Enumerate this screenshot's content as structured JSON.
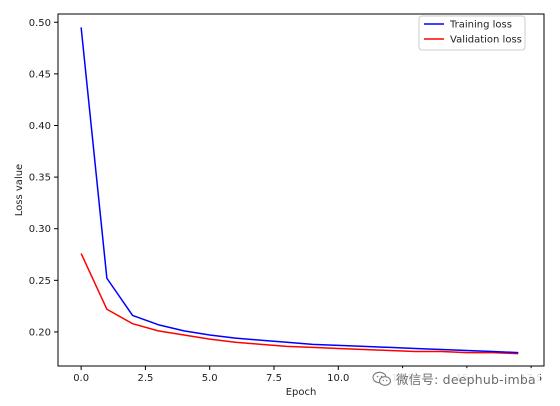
{
  "chart_data": {
    "type": "line",
    "xlabel": "Epoch",
    "ylabel": "Loss value",
    "xlim": [
      -0.9,
      18.0
    ],
    "ylim": [
      0.167,
      0.508
    ],
    "grid": false,
    "legend_position": "top-right",
    "x_ticks": [
      0.0,
      2.5,
      5.0,
      7.5,
      10.0,
      12.5,
      15.0,
      17.5
    ],
    "x_tick_labels": [
      "0.0",
      "2.5",
      "5.0",
      "7.5",
      "10.0",
      "12.5",
      "15.0",
      "17.5"
    ],
    "y_ticks": [
      0.2,
      0.25,
      0.3,
      0.35,
      0.4,
      0.45,
      0.5
    ],
    "y_tick_labels": [
      "0.20",
      "0.25",
      "0.30",
      "0.35",
      "0.40",
      "0.45",
      "0.50"
    ],
    "x": [
      0,
      1,
      2,
      3,
      4,
      5,
      6,
      7,
      8,
      9,
      10,
      11,
      12,
      13,
      14,
      15,
      16,
      17
    ],
    "series": [
      {
        "name": "Training loss",
        "color": "#0000ff",
        "values": [
          0.495,
          0.252,
          0.216,
          0.207,
          0.201,
          0.197,
          0.194,
          0.192,
          0.19,
          0.188,
          0.187,
          0.186,
          0.185,
          0.184,
          0.183,
          0.182,
          0.181,
          0.18
        ]
      },
      {
        "name": "Validation loss",
        "color": "#ff0000",
        "values": [
          0.276,
          0.222,
          0.208,
          0.201,
          0.197,
          0.193,
          0.19,
          0.188,
          0.186,
          0.185,
          0.184,
          0.183,
          0.182,
          0.181,
          0.181,
          0.18,
          0.18,
          0.179
        ]
      }
    ]
  },
  "watermark": {
    "text": "微信号: deephub-imba",
    "icon": "wechat-icon"
  }
}
